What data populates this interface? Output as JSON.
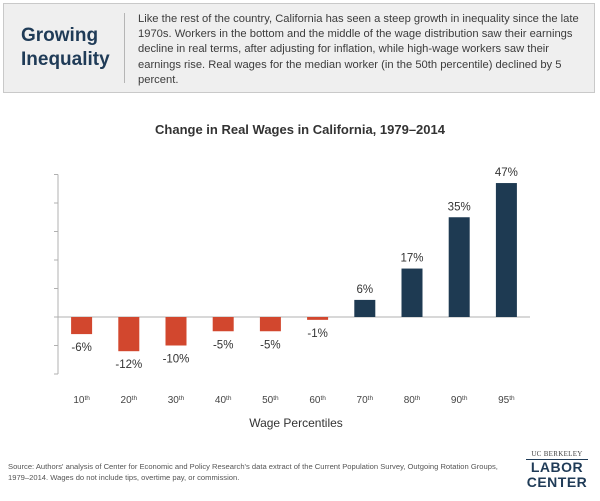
{
  "header": {
    "title_line1": "Growing",
    "title_line2": "Inequality",
    "text": "Like the rest of the country, California has seen a steep growth in inequality since the late 1970s. Workers in the bottom and the middle of the wage distribution saw their earnings decline in real terms, after adjusting for inflation, while high-wage workers saw their earnings rise. Real wages for the median worker (in the 50th percentile) declined by 5 percent."
  },
  "chart_data": {
    "type": "bar",
    "title": "Change in Real Wages in California, 1979–2014",
    "xlabel": "Wage Percentiles",
    "ylabel": "",
    "categories": [
      "10th",
      "20th",
      "30th",
      "40th",
      "50th",
      "60th",
      "70th",
      "80th",
      "90th",
      "95th"
    ],
    "values": [
      -6,
      -12,
      -10,
      -5,
      -5,
      -1,
      6,
      17,
      35,
      47
    ],
    "value_labels": [
      "-6%",
      "-12%",
      "-10%",
      "-5%",
      "-5%",
      "-1%",
      "6%",
      "17%",
      "35%",
      "47%"
    ],
    "ylim": [
      -20,
      50
    ],
    "ytick_step": 10,
    "grid": false,
    "colors": {
      "negative": "#d2472e",
      "positive": "#1e3a52",
      "axis": "#b0b0b0"
    }
  },
  "footer": {
    "source": "Source: Authors' analysis of Center for Economic and Policy Research's data extract of the Current Population Survey, Outgoing Rotation Groups, 1979–2014. Wages do not include tips, overtime pay, or commission.",
    "logo_line1": "UC BERKELEY",
    "logo_line2": "LABOR",
    "logo_line3": "CENTER"
  }
}
